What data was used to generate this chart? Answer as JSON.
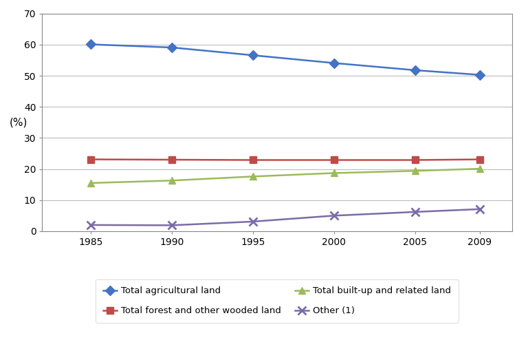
{
  "years": [
    1985,
    1990,
    1995,
    2000,
    2005,
    2009
  ],
  "series": [
    {
      "label": "Total agricultural land",
      "values": [
        60.1,
        59.1,
        56.6,
        54.1,
        51.8,
        50.3
      ],
      "color": "#4472C4",
      "marker": "D",
      "markersize": 7,
      "linewidth": 1.8
    },
    {
      "label": "Total forest and other wooded land",
      "values": [
        23.1,
        23.0,
        22.9,
        22.9,
        22.9,
        23.1
      ],
      "color": "#BE4B48",
      "marker": "s",
      "markersize": 7,
      "linewidth": 1.8
    },
    {
      "label": "Total built-up and related land",
      "values": [
        15.5,
        16.3,
        17.6,
        18.7,
        19.4,
        20.1
      ],
      "color": "#9BBB59",
      "marker": "^",
      "markersize": 7,
      "linewidth": 1.8
    },
    {
      "label": "Other (1)",
      "values": [
        2.0,
        1.9,
        3.1,
        5.0,
        6.2,
        7.1
      ],
      "color": "#7B6BA8",
      "marker": "x",
      "markersize": 8,
      "linewidth": 1.8,
      "markeredgewidth": 2.0
    }
  ],
  "ylabel": "(%)",
  "ylim": [
    0,
    70
  ],
  "yticks": [
    0,
    10,
    20,
    30,
    40,
    50,
    60,
    70
  ],
  "xticks": [
    1985,
    1990,
    1995,
    2000,
    2005,
    2009
  ],
  "grid_color": "#BBBBBB",
  "background_color": "#FFFFFF",
  "legend_ncol": 2,
  "legend_fontsize": 9.5
}
